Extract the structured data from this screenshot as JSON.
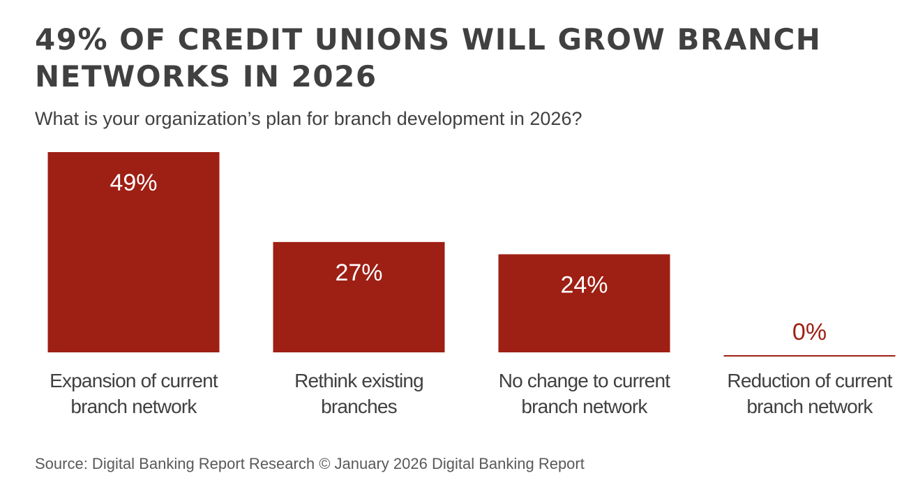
{
  "header": {
    "title": "49% OF CREDIT UNIONS WILL GROW BRANCH NETWORKS IN 2026",
    "subtitle": "What is your organization’s plan for branch development in 2026?"
  },
  "footer": {
    "source": "Source: Digital Banking Report Research © January 2026 Digital Banking Report"
  },
  "colors": {
    "bar": "#9e1f14",
    "bar_label": "#ffffff",
    "outside_label": "#9e1f14",
    "axis_text": "#404040"
  },
  "chart_data": {
    "type": "bar",
    "categories": [
      [
        "Expansion of current",
        "branch network"
      ],
      [
        "Rethink existing",
        "branches"
      ],
      [
        "No change to current",
        "branch network"
      ],
      [
        "Reduction of current",
        "branch network"
      ]
    ],
    "values": [
      49,
      27,
      24,
      0
    ],
    "data_labels": [
      "49%",
      "27%",
      "24%",
      "0%"
    ],
    "unit": "%",
    "ylim": [
      0,
      49
    ],
    "grid": false,
    "legend": "none"
  }
}
